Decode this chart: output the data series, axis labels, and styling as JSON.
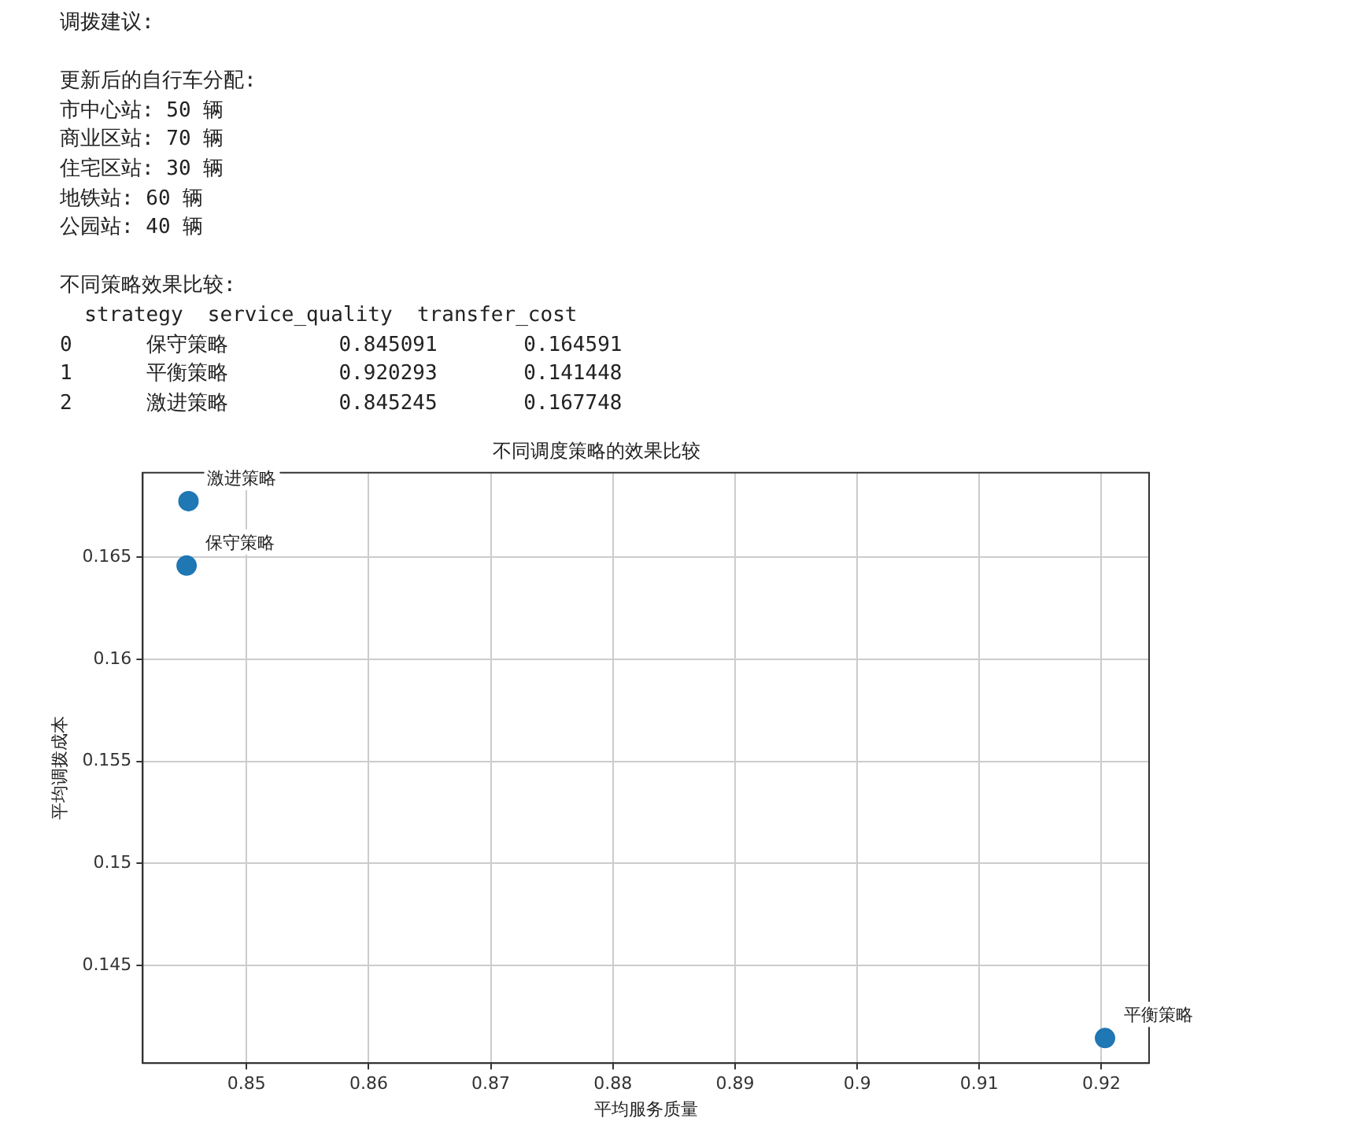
{
  "chart_data": {
    "type": "scatter",
    "title": "不同调度策略的效果比较",
    "xlabel": "平均服务质量",
    "ylabel": "平均调拨成本",
    "x": [
      0.845091,
      0.920293,
      0.845245
    ],
    "series": [
      {
        "color": "#1f77b4",
        "values": [
          0.164591,
          0.141448,
          0.167748
        ]
      }
    ],
    "xlim": [
      0.8415,
      0.9239
    ],
    "ylim": [
      0.14022,
      0.16914
    ],
    "xticks": [
      0.85,
      0.86,
      0.87,
      0.88,
      0.89,
      0.9,
      0.91,
      0.92
    ],
    "yticks": [
      0.145,
      0.15,
      0.155,
      0.16,
      0.165
    ],
    "grid": true,
    "legend": false,
    "marker": "circle",
    "annotations": [
      "调拨建议:",
      "更新后的自行车分配:",
      "市中心站: 50 辆",
      "商业区站: 70 辆",
      "住宅区站: 30 辆",
      "地铁站: 60 辆",
      "公园站: 40 辆",
      "不同策略效果比较:",
      "  strategy  service_quality  transfer_cost",
      "0      保守策略         0.845091       0.164591",
      "1      平衡策略         0.920293       0.141448",
      "2      激进策略         0.845245       0.167748",
      {
        "text": "保守策略",
        "x": 0.845091,
        "y": 0.164591
      },
      {
        "text": "平衡策略",
        "x": 0.920293,
        "y": 0.141448
      },
      {
        "text": "激进策略",
        "x": 0.845245,
        "y": 0.167748
      }
    ]
  }
}
